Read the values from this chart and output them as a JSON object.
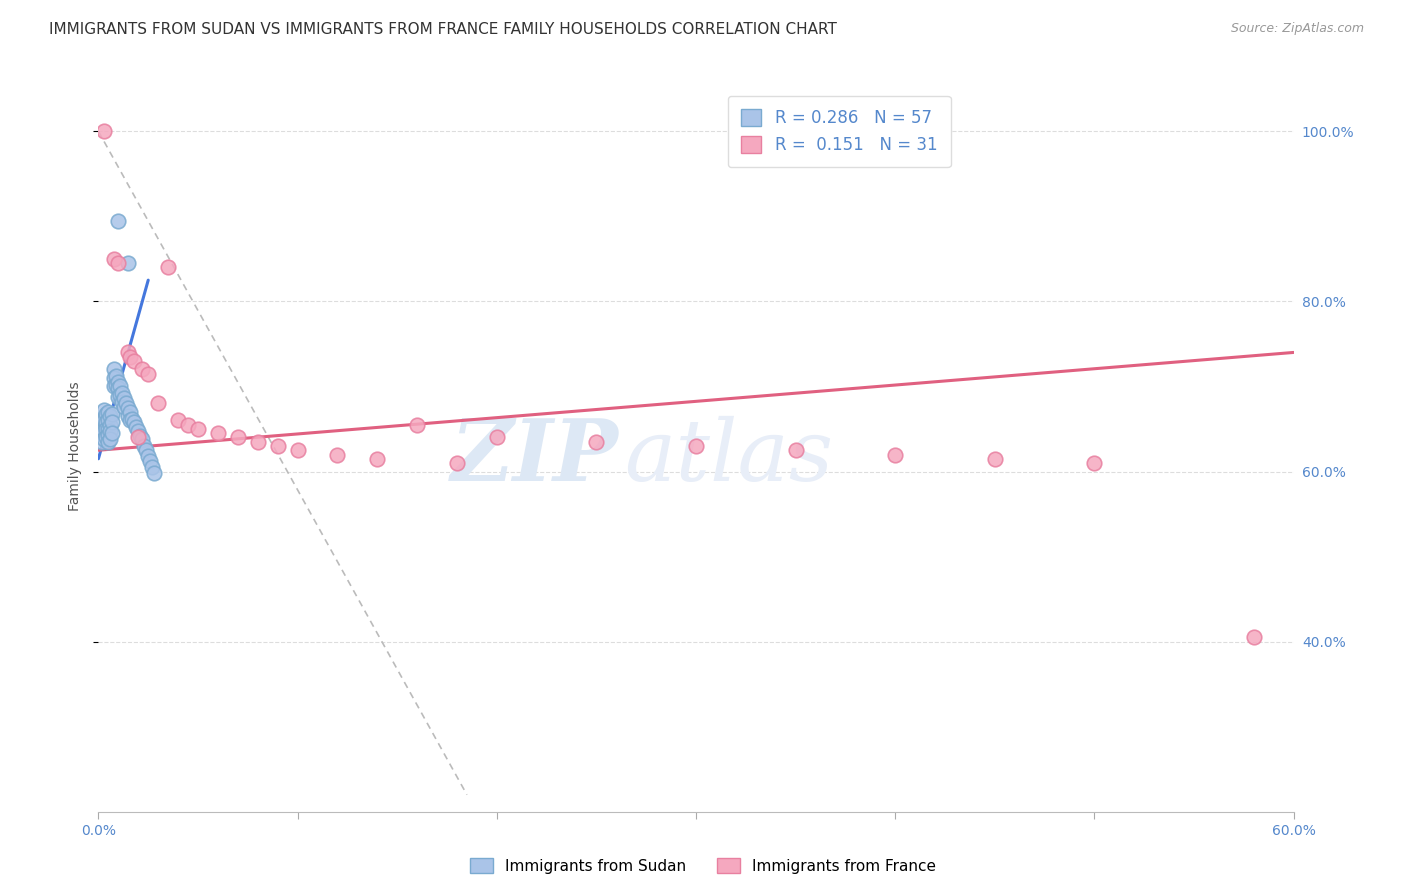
{
  "title": "IMMIGRANTS FROM SUDAN VS IMMIGRANTS FROM FRANCE FAMILY HOUSEHOLDS CORRELATION CHART",
  "source": "Source: ZipAtlas.com",
  "ylabel": "Family Households",
  "xmin": 0.0,
  "xmax": 0.6,
  "ymin": 0.2,
  "ymax": 1.06,
  "sudan_R": 0.286,
  "sudan_N": 57,
  "france_R": 0.151,
  "france_N": 31,
  "sudan_color": "#aac4e8",
  "france_color": "#f5a8bf",
  "sudan_edge_color": "#7aaad0",
  "france_edge_color": "#e880a0",
  "sudan_line_color": "#4477dd",
  "france_line_color": "#e06080",
  "ref_line_color": "#bbbbbb",
  "background_color": "#ffffff",
  "watermark_color": "#dde8f5",
  "grid_color": "#dddddd",
  "tick_color": "#5588cc",
  "title_color": "#333333",
  "source_color": "#999999",
  "sudan_x": [
    0.001,
    0.002,
    0.002,
    0.002,
    0.003,
    0.003,
    0.003,
    0.003,
    0.004,
    0.004,
    0.004,
    0.004,
    0.005,
    0.005,
    0.005,
    0.005,
    0.005,
    0.006,
    0.006,
    0.006,
    0.006,
    0.007,
    0.007,
    0.007,
    0.008,
    0.008,
    0.008,
    0.009,
    0.009,
    0.01,
    0.01,
    0.01,
    0.011,
    0.011,
    0.012,
    0.012,
    0.013,
    0.013,
    0.014,
    0.015,
    0.015,
    0.016,
    0.016,
    0.017,
    0.018,
    0.019,
    0.02,
    0.021,
    0.022,
    0.023,
    0.024,
    0.025,
    0.026,
    0.027,
    0.028,
    0.015,
    0.01
  ],
  "sudan_y": [
    0.655,
    0.66,
    0.648,
    0.635,
    0.672,
    0.66,
    0.648,
    0.638,
    0.668,
    0.658,
    0.65,
    0.64,
    0.67,
    0.66,
    0.65,
    0.643,
    0.635,
    0.665,
    0.655,
    0.648,
    0.638,
    0.668,
    0.658,
    0.645,
    0.72,
    0.71,
    0.7,
    0.712,
    0.702,
    0.705,
    0.698,
    0.688,
    0.7,
    0.69,
    0.692,
    0.682,
    0.686,
    0.676,
    0.68,
    0.675,
    0.665,
    0.67,
    0.66,
    0.662,
    0.658,
    0.652,
    0.648,
    0.642,
    0.638,
    0.63,
    0.625,
    0.618,
    0.612,
    0.605,
    0.598,
    0.845,
    0.895
  ],
  "france_x": [
    0.003,
    0.008,
    0.01,
    0.015,
    0.016,
    0.018,
    0.02,
    0.022,
    0.025,
    0.03,
    0.035,
    0.04,
    0.045,
    0.05,
    0.06,
    0.07,
    0.08,
    0.09,
    0.1,
    0.12,
    0.14,
    0.16,
    0.18,
    0.2,
    0.25,
    0.3,
    0.35,
    0.4,
    0.45,
    0.5,
    0.58
  ],
  "france_y": [
    1.0,
    0.85,
    0.845,
    0.74,
    0.735,
    0.73,
    0.64,
    0.72,
    0.715,
    0.68,
    0.84,
    0.66,
    0.655,
    0.65,
    0.645,
    0.64,
    0.635,
    0.63,
    0.625,
    0.62,
    0.615,
    0.655,
    0.61,
    0.64,
    0.635,
    0.63,
    0.625,
    0.62,
    0.615,
    0.61,
    0.405
  ],
  "title_fontsize": 11,
  "source_fontsize": 9,
  "axis_label_fontsize": 10,
  "tick_fontsize": 10,
  "legend_fontsize": 12
}
